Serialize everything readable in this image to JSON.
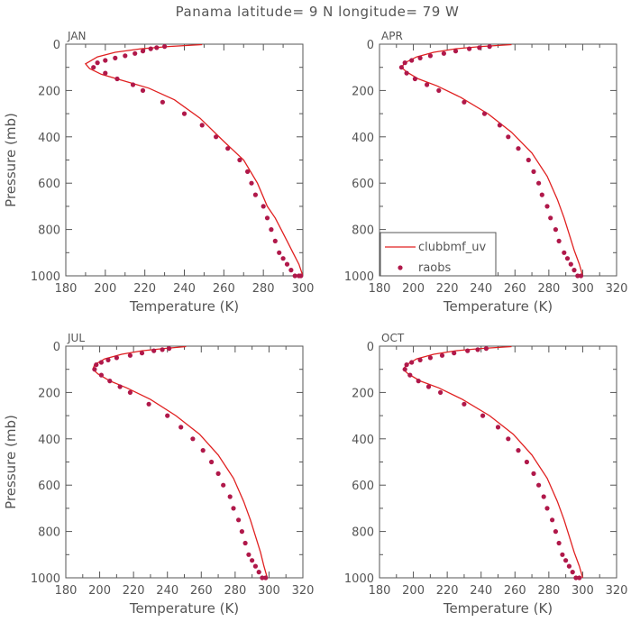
{
  "suptitle": "Panama  latitude= 9 N longitude= 79 W",
  "legend": {
    "model_label": "clubbmf_uv",
    "obs_label": "raobs"
  },
  "colors": {
    "model": "#e02020",
    "obs": "#b0184a",
    "axis": "#555555"
  },
  "chart_data": [
    {
      "type": "line",
      "panel": "JAN",
      "xlabel": "Temperature (K)",
      "ylabel": "Pressure (mb)",
      "xlim": [
        180,
        300
      ],
      "ylim": [
        1000,
        0
      ],
      "xticks": [
        180,
        200,
        220,
        240,
        260,
        280,
        300
      ],
      "yticks": [
        0,
        200,
        400,
        600,
        800,
        1000
      ],
      "grid": false,
      "series": [
        {
          "name": "clubbmf_uv",
          "kind": "line",
          "x": [
            249,
            232,
            218,
            205,
            196,
            190,
            192,
            198,
            210,
            222,
            235,
            248,
            260,
            270,
            277,
            282,
            286,
            289,
            292,
            295,
            298,
            300
          ],
          "y": [
            2,
            10,
            20,
            35,
            55,
            85,
            105,
            130,
            160,
            190,
            240,
            320,
            420,
            500,
            600,
            700,
            750,
            800,
            850,
            900,
            950,
            1000
          ]
        },
        {
          "name": "raobs",
          "kind": "scatter",
          "x": [
            230,
            226,
            223,
            219,
            215,
            210,
            205,
            200,
            196,
            194,
            200,
            206,
            214,
            219,
            229,
            240,
            249,
            256,
            262,
            268,
            272,
            274,
            276,
            280,
            282,
            284,
            286,
            288,
            290,
            292,
            294,
            296,
            298,
            299
          ],
          "y": [
            10,
            15,
            20,
            30,
            40,
            50,
            60,
            70,
            80,
            100,
            125,
            150,
            175,
            200,
            250,
            300,
            350,
            400,
            450,
            500,
            550,
            600,
            650,
            700,
            750,
            800,
            850,
            900,
            925,
            950,
            975,
            1000,
            1000,
            1000
          ]
        }
      ]
    },
    {
      "type": "line",
      "panel": "APR",
      "xlabel": "Temperature (K)",
      "ylabel": "",
      "xlim": [
        180,
        320
      ],
      "ylim": [
        1000,
        0
      ],
      "xticks": [
        180,
        200,
        220,
        240,
        260,
        280,
        300,
        320
      ],
      "yticks": [
        0,
        200,
        400,
        600,
        800,
        1000
      ],
      "grid": false,
      "series": [
        {
          "name": "clubbmf_uv",
          "kind": "line",
          "x": [
            258,
            240,
            225,
            212,
            202,
            195,
            193,
            196,
            203,
            214,
            228,
            244,
            258,
            270,
            279,
            285,
            289,
            292,
            295,
            298,
            300
          ],
          "y": [
            2,
            10,
            20,
            35,
            55,
            80,
            100,
            120,
            150,
            180,
            230,
            300,
            380,
            470,
            570,
            670,
            750,
            820,
            890,
            950,
            1000
          ]
        },
        {
          "name": "raobs",
          "kind": "scatter",
          "x": [
            245,
            239,
            233,
            225,
            218,
            210,
            204,
            199,
            195,
            193,
            196,
            201,
            208,
            215,
            230,
            242,
            251,
            256,
            262,
            268,
            271,
            274,
            276,
            279,
            281,
            284,
            286,
            289,
            291,
            293,
            295,
            297,
            299
          ],
          "y": [
            10,
            15,
            20,
            30,
            40,
            50,
            60,
            70,
            80,
            100,
            125,
            150,
            175,
            200,
            250,
            300,
            350,
            400,
            450,
            500,
            550,
            600,
            650,
            700,
            750,
            800,
            850,
            900,
            925,
            950,
            975,
            1000,
            1000
          ]
        }
      ]
    },
    {
      "type": "line",
      "panel": "JUL",
      "xlabel": "Temperature (K)",
      "ylabel": "Pressure (mb)",
      "xlim": [
        180,
        320
      ],
      "ylim": [
        1000,
        0
      ],
      "xticks": [
        180,
        200,
        220,
        240,
        260,
        280,
        300,
        320
      ],
      "yticks": [
        0,
        200,
        400,
        600,
        800,
        1000
      ],
      "grid": false,
      "series": [
        {
          "name": "clubbmf_uv",
          "kind": "line",
          "x": [
            251,
            238,
            225,
            213,
            203,
            197,
            196,
            199,
            206,
            216,
            230,
            245,
            259,
            270,
            279,
            285,
            289,
            292,
            295,
            297,
            299
          ],
          "y": [
            2,
            10,
            20,
            35,
            55,
            80,
            100,
            120,
            150,
            180,
            230,
            300,
            380,
            470,
            570,
            670,
            750,
            820,
            890,
            950,
            1000
          ]
        },
        {
          "name": "raobs",
          "kind": "scatter",
          "x": [
            241,
            237,
            232,
            225,
            218,
            210,
            205,
            201,
            198,
            197,
            201,
            206,
            212,
            218,
            229,
            240,
            248,
            255,
            261,
            266,
            270,
            273,
            277,
            279,
            282,
            284,
            286,
            288,
            290,
            292,
            294,
            296,
            298
          ],
          "y": [
            10,
            15,
            20,
            30,
            40,
            50,
            60,
            70,
            80,
            100,
            125,
            150,
            175,
            200,
            250,
            300,
            350,
            400,
            450,
            500,
            550,
            600,
            650,
            700,
            750,
            800,
            850,
            900,
            925,
            950,
            975,
            1000,
            1000
          ]
        }
      ]
    },
    {
      "type": "line",
      "panel": "OCT",
      "xlabel": "Temperature (K)",
      "ylabel": "",
      "xlim": [
        180,
        320
      ],
      "ylim": [
        1000,
        0
      ],
      "xticks": [
        180,
        200,
        220,
        240,
        260,
        280,
        300,
        320
      ],
      "yticks": [
        0,
        200,
        400,
        600,
        800,
        1000
      ],
      "grid": false,
      "series": [
        {
          "name": "clubbmf_uv",
          "kind": "line",
          "x": [
            258,
            240,
            225,
            212,
            202,
            196,
            194,
            197,
            204,
            215,
            229,
            245,
            259,
            270,
            279,
            285,
            289,
            292,
            295,
            298,
            300
          ],
          "y": [
            2,
            10,
            20,
            35,
            55,
            80,
            100,
            120,
            150,
            180,
            230,
            300,
            380,
            470,
            570,
            670,
            750,
            820,
            890,
            950,
            1000
          ]
        },
        {
          "name": "raobs",
          "kind": "scatter",
          "x": [
            243,
            238,
            232,
            224,
            217,
            210,
            204,
            199,
            196,
            195,
            198,
            203,
            209,
            216,
            230,
            241,
            250,
            256,
            262,
            267,
            271,
            274,
            277,
            279,
            282,
            284,
            286,
            288,
            290,
            292,
            294,
            296,
            298
          ],
          "y": [
            10,
            15,
            20,
            30,
            40,
            50,
            60,
            70,
            80,
            100,
            125,
            150,
            175,
            200,
            250,
            300,
            350,
            400,
            450,
            500,
            550,
            600,
            650,
            700,
            750,
            800,
            850,
            900,
            925,
            950,
            975,
            1000,
            1000
          ]
        }
      ]
    }
  ]
}
